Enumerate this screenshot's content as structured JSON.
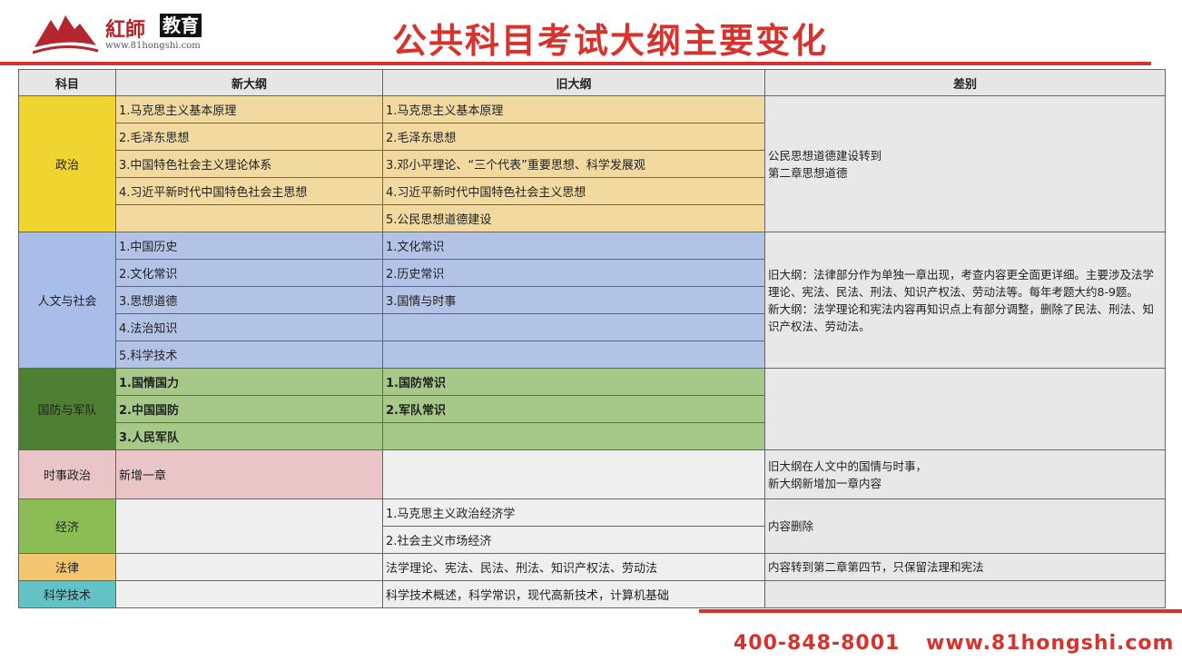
{
  "header": {
    "brand_cn": "紅師",
    "brand_box": "教育",
    "brand_url": "www.81hongshi.com",
    "title": "公共科目考试大纲主要变化"
  },
  "table": {
    "headers": [
      "科目",
      "新大纲",
      "旧大纲",
      "差别"
    ],
    "politics": {
      "subject": "政治",
      "new": [
        "1.马克思主义基本原理",
        "2.毛泽东思想",
        "3.中国特色社会主义理论体系",
        "4.习近平新时代中国特色社会主思想",
        ""
      ],
      "old": [
        "1.马克思主义基本原理",
        "2.毛泽东思想",
        "3.邓小平理论、“三个代表”重要思想、科学发展观",
        "4.习近平新时代中国特色社会主义思想",
        "5.公民思想道德建设"
      ],
      "diff": "公民思想道德建设转到\n第二章思想道德"
    },
    "humanities": {
      "subject": "人文与社会",
      "new": [
        "1.中国历史",
        "2.文化常识",
        "3.思想道德",
        "4.法治知识",
        "5.科学技术"
      ],
      "old": [
        "1.文化常识",
        "2.历史常识",
        "3.国情与时事",
        "",
        ""
      ],
      "diff1": "旧大纲：法律部分作为单独一章出现，考查内容更全面更详细。主要涉及法学理论、宪法、民法、刑法、知识产权法、劳动法等。每年考题大约8-9题。",
      "diff2": "新大纲：法学理论和宪法内容再知识点上有部分调整，删除了民法、刑法、知识产权法、劳动法。"
    },
    "defense": {
      "subject": "国防与军队",
      "new": [
        "1.国情国力",
        "2.中国国防",
        "3.人民军队"
      ],
      "old": [
        "1.国防常识",
        "2.军队常识",
        ""
      ],
      "diff": ""
    },
    "current": {
      "subject": "时事政治",
      "new": "新增一章",
      "old": "",
      "diff1": "旧大纲在人文中的国情与时事，",
      "diff2": "新大纲新增加一章内容"
    },
    "economy": {
      "subject": "经济",
      "new": "",
      "old": [
        "1.马克思主义政治经济学",
        "2.社会主义市场经济"
      ],
      "diff": "内容删除"
    },
    "law": {
      "subject": "法律",
      "new": "",
      "old": "法学理论、宪法、民法、刑法、知识产权法、劳动法",
      "diff": "内容转到第二章第四节，只保留法理和宪法"
    },
    "science": {
      "subject": "科学技术",
      "new": "",
      "old": "科学技术概述，科学常识，现代高新技术，计算机基础",
      "diff": ""
    }
  },
  "footer": {
    "phone": "400-848-8001",
    "url": "www.81hongshi.com"
  },
  "colors": {
    "accent": "#d8322c"
  }
}
